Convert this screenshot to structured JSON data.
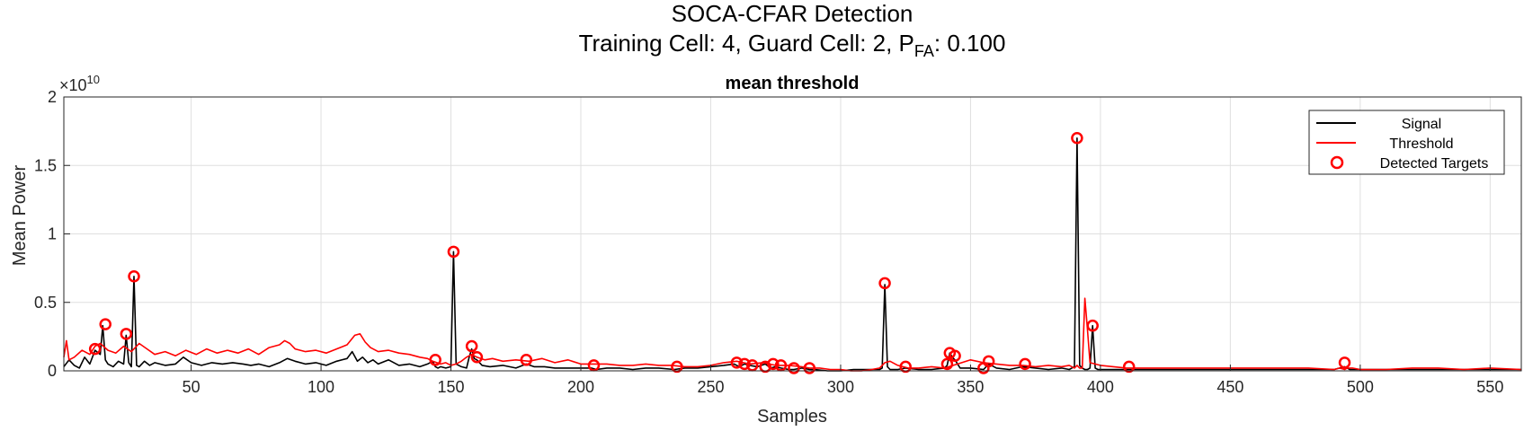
{
  "figure": {
    "title": "SOCA-CFAR  Detection",
    "subtitle": {
      "prefix": "Training  Cell:  4,  Guard  Cell:  2,  P",
      "subscript": "FA",
      "suffix": ":  0.100"
    }
  },
  "chart_data": {
    "type": "line",
    "title": "mean threshold",
    "xlabel": "Samples",
    "ylabel": "Mean Power",
    "y_exponent_label": "×10",
    "y_exponent_value": "10",
    "xlim": [
      1,
      562
    ],
    "ylim": [
      0,
      2
    ],
    "xticks": [
      50,
      100,
      150,
      200,
      250,
      300,
      350,
      400,
      450,
      500,
      550
    ],
    "yticks": [
      0,
      0.5,
      1,
      1.5,
      2
    ],
    "ytick_labels": [
      "0",
      "0.5",
      "1",
      "1.5",
      "2"
    ],
    "grid": true,
    "legend_position": "top-right",
    "legend": [
      "Signal",
      "Threshold",
      "Detected Targets"
    ],
    "colors": {
      "signal": "#000000",
      "threshold": "#ff0000",
      "targets": "#ff0000"
    },
    "series": [
      {
        "name": "Signal",
        "x": [
          1,
          3,
          5,
          7,
          9,
          11,
          13,
          15,
          16,
          17,
          18,
          20,
          22,
          24,
          25,
          26,
          27,
          28,
          29,
          30,
          32,
          34,
          36,
          38,
          40,
          44,
          47,
          50,
          54,
          58,
          62,
          66,
          70,
          73,
          76,
          80,
          84,
          87,
          90,
          94,
          98,
          102,
          106,
          110,
          112,
          114,
          116,
          118,
          120,
          122,
          126,
          130,
          134,
          138,
          141,
          143,
          144,
          145,
          146,
          148,
          150,
          151,
          152,
          154,
          156,
          157,
          158,
          159,
          160,
          162,
          165,
          170,
          175,
          179,
          182,
          186,
          190,
          195,
          200,
          204,
          206,
          210,
          215,
          220,
          225,
          230,
          236,
          240,
          245,
          250,
          255,
          259,
          261,
          263,
          265,
          268,
          271,
          273,
          275,
          277,
          280,
          282,
          285,
          288,
          290,
          295,
          300,
          305,
          310,
          315,
          316,
          317,
          318,
          319,
          320,
          322,
          325,
          330,
          335,
          340,
          341,
          342,
          343,
          344,
          346,
          350,
          355,
          357,
          360,
          365,
          370,
          375,
          380,
          385,
          388,
          389,
          390,
          391,
          392,
          393,
          394,
          395,
          396,
          397,
          398,
          399,
          400,
          405,
          410,
          415,
          420,
          430,
          440,
          450,
          460,
          470,
          480,
          490,
          494,
          496,
          500,
          510,
          520,
          530,
          540,
          550,
          562
        ],
        "y": [
          0.03,
          0.08,
          0.04,
          0.02,
          0.1,
          0.05,
          0.15,
          0.12,
          0.33,
          0.08,
          0.05,
          0.03,
          0.07,
          0.05,
          0.26,
          0.06,
          0.03,
          0.69,
          0.04,
          0.03,
          0.07,
          0.04,
          0.06,
          0.05,
          0.04,
          0.05,
          0.1,
          0.06,
          0.04,
          0.06,
          0.05,
          0.06,
          0.05,
          0.04,
          0.05,
          0.03,
          0.06,
          0.09,
          0.07,
          0.05,
          0.06,
          0.04,
          0.07,
          0.09,
          0.14,
          0.07,
          0.1,
          0.06,
          0.08,
          0.05,
          0.08,
          0.04,
          0.05,
          0.03,
          0.05,
          0.07,
          0.03,
          0.02,
          0.03,
          0.02,
          0.03,
          0.87,
          0.05,
          0.03,
          0.02,
          0.1,
          0.16,
          0.09,
          0.08,
          0.04,
          0.03,
          0.04,
          0.02,
          0.05,
          0.03,
          0.03,
          0.02,
          0.02,
          0.02,
          0.02,
          0.01,
          0.02,
          0.02,
          0.01,
          0.02,
          0.02,
          0.01,
          0.02,
          0.02,
          0.03,
          0.04,
          0.05,
          0.03,
          0.05,
          0.04,
          0.03,
          0.05,
          0.02,
          0.03,
          0.02,
          0.01,
          0.01,
          0.02,
          0.01,
          0.01,
          0.0,
          0.0,
          0.01,
          0.01,
          0.01,
          0.02,
          0.63,
          0.03,
          0.01,
          0.01,
          0.01,
          0.02,
          0.01,
          0.01,
          0.02,
          0.04,
          0.13,
          0.1,
          0.08,
          0.02,
          0.02,
          0.01,
          0.05,
          0.02,
          0.01,
          0.03,
          0.02,
          0.01,
          0.02,
          0.01,
          0.02,
          0.03,
          1.7,
          0.04,
          0.02,
          0.01,
          0.01,
          0.02,
          0.33,
          0.02,
          0.01,
          0.01,
          0.01,
          0.01,
          0.01,
          0.01,
          0.01,
          0.01,
          0.01,
          0.01,
          0.01,
          0.01,
          0.01,
          0.03,
          0.01,
          0.01,
          0.01,
          0.01,
          0.01,
          0.01,
          0.01,
          0.01
        ]
      },
      {
        "name": "Threshold",
        "x": [
          1,
          2,
          3,
          5,
          8,
          11,
          13,
          15,
          18,
          21,
          24,
          27,
          30,
          33,
          36,
          40,
          44,
          48,
          52,
          56,
          60,
          64,
          68,
          72,
          76,
          80,
          84,
          86,
          88,
          90,
          94,
          98,
          102,
          106,
          110,
          113,
          115,
          117,
          119,
          122,
          126,
          130,
          134,
          138,
          141,
          143,
          146,
          148,
          150,
          152,
          154,
          156,
          158,
          160,
          163,
          166,
          170,
          175,
          180,
          185,
          190,
          195,
          200,
          205,
          210,
          215,
          220,
          225,
          230,
          235,
          240,
          245,
          250,
          255,
          260,
          265,
          270,
          275,
          280,
          285,
          288,
          292,
          296,
          300,
          304,
          308,
          312,
          315,
          317,
          319,
          322,
          326,
          330,
          335,
          340,
          345,
          350,
          355,
          360,
          365,
          370,
          375,
          380,
          385,
          388,
          390,
          391,
          392,
          393,
          394,
          395,
          396,
          398,
          400,
          405,
          410,
          420,
          430,
          440,
          450,
          460,
          470,
          480,
          490,
          492,
          494,
          495,
          497,
          500,
          510,
          520,
          530,
          540,
          550,
          562
        ],
        "y": [
          0.1,
          0.22,
          0.08,
          0.1,
          0.15,
          0.12,
          0.18,
          0.2,
          0.15,
          0.13,
          0.18,
          0.14,
          0.2,
          0.16,
          0.12,
          0.14,
          0.11,
          0.15,
          0.12,
          0.16,
          0.13,
          0.15,
          0.13,
          0.16,
          0.12,
          0.17,
          0.19,
          0.22,
          0.2,
          0.16,
          0.14,
          0.15,
          0.13,
          0.16,
          0.19,
          0.26,
          0.27,
          0.21,
          0.17,
          0.14,
          0.15,
          0.13,
          0.12,
          0.1,
          0.09,
          0.07,
          0.05,
          0.06,
          0.04,
          0.05,
          0.07,
          0.1,
          0.12,
          0.1,
          0.08,
          0.09,
          0.07,
          0.08,
          0.07,
          0.09,
          0.06,
          0.08,
          0.05,
          0.05,
          0.05,
          0.04,
          0.04,
          0.05,
          0.04,
          0.04,
          0.03,
          0.03,
          0.04,
          0.06,
          0.07,
          0.05,
          0.06,
          0.04,
          0.04,
          0.03,
          0.02,
          0.02,
          0.01,
          0.01,
          0.0,
          0.0,
          0.01,
          0.02,
          0.06,
          0.07,
          0.04,
          0.02,
          0.02,
          0.03,
          0.02,
          0.05,
          0.08,
          0.06,
          0.05,
          0.04,
          0.04,
          0.03,
          0.04,
          0.03,
          0.04,
          0.02,
          0.04,
          0.02,
          0.02,
          0.53,
          0.3,
          0.06,
          0.05,
          0.04,
          0.03,
          0.02,
          0.02,
          0.02,
          0.02,
          0.02,
          0.02,
          0.02,
          0.02,
          0.01,
          0.02,
          0.01,
          0.02,
          0.02,
          0.01,
          0.01,
          0.02,
          0.02,
          0.01,
          0.02,
          0.01
        ]
      },
      {
        "name": "Detected Targets",
        "x": [
          13,
          17,
          25,
          28,
          144,
          151,
          158,
          160,
          179,
          205,
          237,
          260,
          263,
          266,
          271,
          274,
          277,
          282,
          288,
          317,
          325,
          341,
          342,
          344,
          355,
          357,
          371,
          391,
          397,
          411,
          494
        ],
        "y": [
          0.16,
          0.34,
          0.27,
          0.69,
          0.08,
          0.87,
          0.18,
          0.1,
          0.08,
          0.04,
          0.03,
          0.06,
          0.05,
          0.04,
          0.03,
          0.05,
          0.04,
          0.02,
          0.02,
          0.64,
          0.03,
          0.05,
          0.13,
          0.11,
          0.02,
          0.07,
          0.05,
          1.7,
          0.33,
          0.03,
          0.06
        ]
      }
    ]
  }
}
